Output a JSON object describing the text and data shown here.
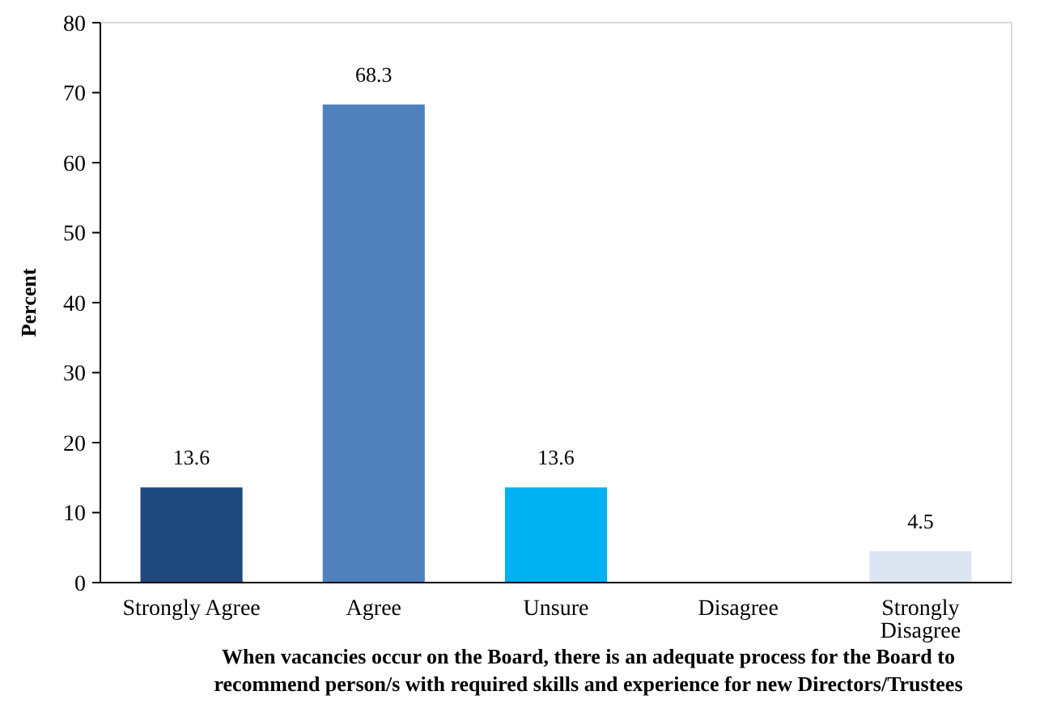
{
  "chart_data": {
    "type": "bar",
    "ylabel": "Percent",
    "xlabel": "When vacancies occur on the Board, there is an adequate process for the Board to recommend person/s with required skills and experience for new Directors/Trustees",
    "categories": [
      "Strongly Agree",
      "Agree",
      "Unsure",
      "Disagree",
      "Strongly Disagree"
    ],
    "values": [
      13.6,
      68.3,
      13.6,
      0,
      4.5
    ],
    "colors": [
      "#1f497d",
      "#4f81bd",
      "#00b0f0",
      "#8eb4e3",
      "#dce6f2"
    ],
    "value_labels": [
      "13.6",
      "68.3",
      "13.6",
      null,
      "4.5"
    ],
    "ylim": [
      0,
      80
    ],
    "yticks": [
      0,
      10,
      20,
      30,
      40,
      50,
      60,
      70,
      80
    ],
    "grid": false
  }
}
